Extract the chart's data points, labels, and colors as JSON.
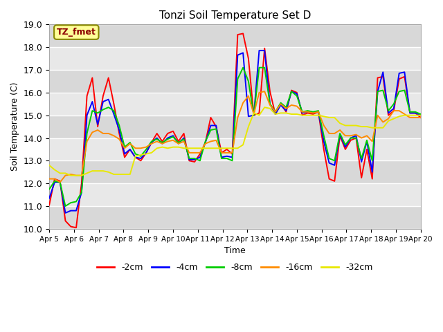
{
  "title": "Tonzi Soil Temperature Set D",
  "xlabel": "Time",
  "ylabel": "Soil Temperature (C)",
  "ylim": [
    10.0,
    19.0
  ],
  "yticks": [
    10.0,
    11.0,
    12.0,
    13.0,
    14.0,
    15.0,
    16.0,
    17.0,
    18.0,
    19.0
  ],
  "xtick_labels": [
    "Apr 5",
    "Apr 6",
    "Apr 7",
    "Apr 8",
    "Apr 9",
    "Apr 10",
    "Apr 11",
    "Apr 12",
    "Apr 13",
    "Apr 14",
    "Apr 15",
    "Apr 16",
    "Apr 17",
    "Apr 18",
    "Apr 19",
    "Apr 20"
  ],
  "annotation_text": "TZ_fmet",
  "annotation_box_color": "#ffff99",
  "annotation_text_color": "#8b0000",
  "bg_color_light": "#e8e8e8",
  "bg_color_dark": "#d8d8d8",
  "grid_line_color": "#ffffff",
  "series": {
    "-2cm": {
      "color": "#ff0000",
      "linewidth": 1.4,
      "y": [
        11.05,
        12.2,
        12.1,
        10.35,
        10.1,
        10.05,
        12.0,
        15.85,
        16.65,
        14.5,
        15.85,
        16.65,
        15.5,
        14.2,
        13.15,
        13.5,
        13.15,
        13.0,
        13.35,
        13.8,
        14.2,
        13.85,
        14.2,
        14.3,
        13.85,
        14.2,
        13.0,
        12.95,
        13.3,
        13.8,
        14.9,
        14.5,
        13.35,
        13.5,
        13.3,
        18.55,
        18.6,
        17.5,
        15.0,
        15.1,
        17.95,
        16.05,
        15.05,
        15.5,
        15.15,
        16.1,
        16.0,
        15.0,
        15.1,
        15.05,
        15.15,
        13.5,
        12.2,
        12.1,
        14.1,
        13.5,
        13.9,
        14.0,
        12.25,
        13.5,
        12.2,
        16.65,
        16.7,
        15.0,
        15.2,
        16.6,
        16.7,
        15.1,
        15.1,
        14.9
      ]
    },
    "-4cm": {
      "color": "#0000ff",
      "linewidth": 1.4,
      "y": [
        11.35,
        12.05,
        12.05,
        10.7,
        10.8,
        10.8,
        11.6,
        15.0,
        15.6,
        14.6,
        15.6,
        15.7,
        15.05,
        14.35,
        13.3,
        13.5,
        13.15,
        13.1,
        13.35,
        13.8,
        14.0,
        13.75,
        14.0,
        14.1,
        13.75,
        14.0,
        13.05,
        13.05,
        13.15,
        13.8,
        14.55,
        14.55,
        13.15,
        13.2,
        13.15,
        17.65,
        17.75,
        14.95,
        15.0,
        17.85,
        17.85,
        15.5,
        15.05,
        15.45,
        15.2,
        16.05,
        15.95,
        15.1,
        15.15,
        15.1,
        15.15,
        13.85,
        12.9,
        12.8,
        14.15,
        13.6,
        14.0,
        14.1,
        12.95,
        13.85,
        12.5,
        16.05,
        16.9,
        15.1,
        15.3,
        16.85,
        16.9,
        15.1,
        15.1,
        15.0
      ]
    },
    "-8cm": {
      "color": "#00cc00",
      "linewidth": 1.4,
      "y": [
        11.75,
        12.1,
        12.05,
        11.0,
        11.15,
        11.2,
        11.6,
        14.2,
        15.2,
        15.1,
        15.25,
        15.35,
        15.2,
        14.55,
        13.6,
        13.8,
        13.3,
        13.2,
        13.5,
        13.85,
        13.95,
        13.8,
        13.95,
        14.05,
        13.8,
        13.95,
        13.1,
        13.1,
        13.0,
        13.85,
        14.35,
        14.4,
        13.1,
        13.1,
        13.0,
        16.6,
        17.1,
        16.5,
        15.0,
        17.1,
        17.1,
        15.5,
        15.15,
        15.55,
        15.35,
        16.05,
        15.85,
        15.15,
        15.2,
        15.15,
        15.2,
        14.1,
        13.1,
        13.0,
        14.2,
        13.7,
        14.0,
        14.0,
        13.1,
        13.9,
        13.0,
        16.05,
        16.1,
        15.2,
        15.5,
        16.05,
        16.1,
        15.15,
        15.15,
        15.05
      ]
    },
    "-16cm": {
      "color": "#ff8c00",
      "linewidth": 1.4,
      "y": [
        12.2,
        12.2,
        12.05,
        12.35,
        12.4,
        12.35,
        12.35,
        13.85,
        14.25,
        14.35,
        14.2,
        14.2,
        14.1,
        13.95,
        13.55,
        13.75,
        13.55,
        13.55,
        13.6,
        13.75,
        13.85,
        13.75,
        13.85,
        13.9,
        13.75,
        13.85,
        13.35,
        13.35,
        13.35,
        13.75,
        13.85,
        13.9,
        13.35,
        13.35,
        13.35,
        14.9,
        15.55,
        15.85,
        15.05,
        16.0,
        16.05,
        15.45,
        15.15,
        15.5,
        15.3,
        15.45,
        15.4,
        15.15,
        15.15,
        15.1,
        15.15,
        14.55,
        14.2,
        14.2,
        14.35,
        14.1,
        14.1,
        14.15,
        14.0,
        14.1,
        13.85,
        15.0,
        14.7,
        14.85,
        15.2,
        15.2,
        15.05,
        14.9,
        14.9,
        14.9
      ]
    },
    "-32cm": {
      "color": "#e8e800",
      "linewidth": 1.4,
      "y": [
        12.8,
        12.6,
        12.45,
        12.45,
        12.35,
        12.35,
        12.35,
        12.45,
        12.55,
        12.55,
        12.55,
        12.5,
        12.4,
        12.4,
        12.4,
        12.4,
        13.2,
        13.25,
        13.3,
        13.35,
        13.55,
        13.6,
        13.55,
        13.6,
        13.6,
        13.55,
        13.55,
        13.55,
        13.55,
        13.55,
        13.55,
        13.55,
        13.55,
        13.55,
        13.55,
        13.55,
        13.7,
        14.5,
        15.1,
        15.0,
        15.35,
        15.3,
        15.05,
        15.1,
        15.1,
        15.05,
        15.05,
        15.0,
        15.0,
        15.0,
        15.0,
        14.95,
        14.9,
        14.9,
        14.65,
        14.55,
        14.55,
        14.55,
        14.5,
        14.5,
        14.45,
        14.45,
        14.45,
        14.75,
        14.85,
        14.95,
        15.0,
        15.0,
        15.0,
        15.0
      ]
    }
  }
}
